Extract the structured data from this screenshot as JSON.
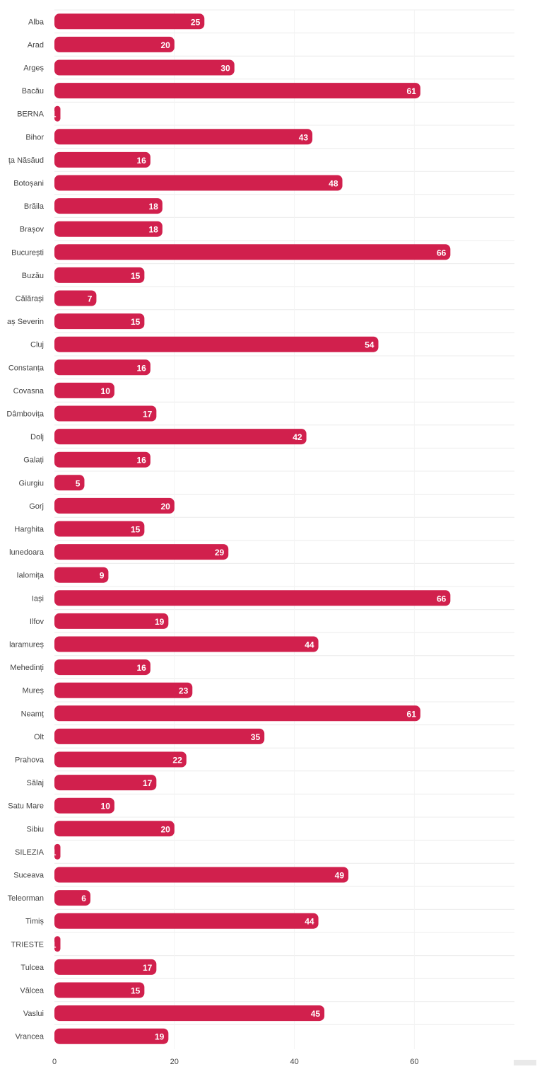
{
  "chart_data": {
    "type": "bar",
    "orientation": "horizontal",
    "categories": [
      "Alba",
      "Arad",
      "Argeș",
      "Bacău",
      "BERNA",
      "Bihor",
      "ța Năsăud",
      "Botoșani",
      "Brăila",
      "Brașov",
      "București",
      "Buzău",
      "Călărași",
      "aș Severin",
      "Cluj",
      "Constanța",
      "Covasna",
      "Dâmbovița",
      "Dolj",
      "Galați",
      "Giurgiu",
      "Gorj",
      "Harghita",
      "lunedoara",
      "Ialomița",
      "Iași",
      "Ilfov",
      "laramureș",
      "Mehedinți",
      "Mureș",
      "Neamț",
      "Olt",
      "Prahova",
      "Sălaj",
      "Satu Mare",
      "Sibiu",
      "SILEZIA",
      "Suceava",
      "Teleorman",
      "Timiș",
      "TRIESTE",
      "Tulcea",
      "Vâlcea",
      "Vaslui",
      "Vrancea"
    ],
    "values": [
      25,
      20,
      30,
      61,
      1,
      43,
      16,
      48,
      18,
      18,
      66,
      15,
      7,
      15,
      54,
      16,
      10,
      17,
      42,
      16,
      5,
      20,
      15,
      29,
      9,
      66,
      19,
      44,
      16,
      23,
      61,
      35,
      22,
      17,
      10,
      20,
      1,
      49,
      6,
      44,
      1,
      17,
      15,
      45,
      19
    ],
    "data_labels": [
      "25",
      "20",
      "30",
      "61",
      "1",
      "43",
      "16",
      "48",
      "18",
      "18",
      "66",
      "15",
      "7",
      "15",
      "54",
      "16",
      "10",
      "17",
      "42",
      "16",
      "5",
      "20",
      "15",
      "29",
      "9",
      "66",
      "19",
      "44",
      "16",
      "23",
      "61",
      "35",
      "22",
      "17",
      "10",
      "20",
      "1",
      "49",
      "6",
      "44",
      "1",
      "17",
      "15",
      "45",
      "19"
    ],
    "x_ticks": [
      0,
      20,
      40,
      60
    ],
    "x_tick_labels": [
      "0",
      "20",
      "40",
      "60"
    ],
    "xlim": [
      0,
      76
    ],
    "grid": true,
    "legend": false,
    "bar_color": "#d1204d",
    "grid_color": "#ececec",
    "label_color": "#444444",
    "value_label_color": "#ffffff"
  }
}
